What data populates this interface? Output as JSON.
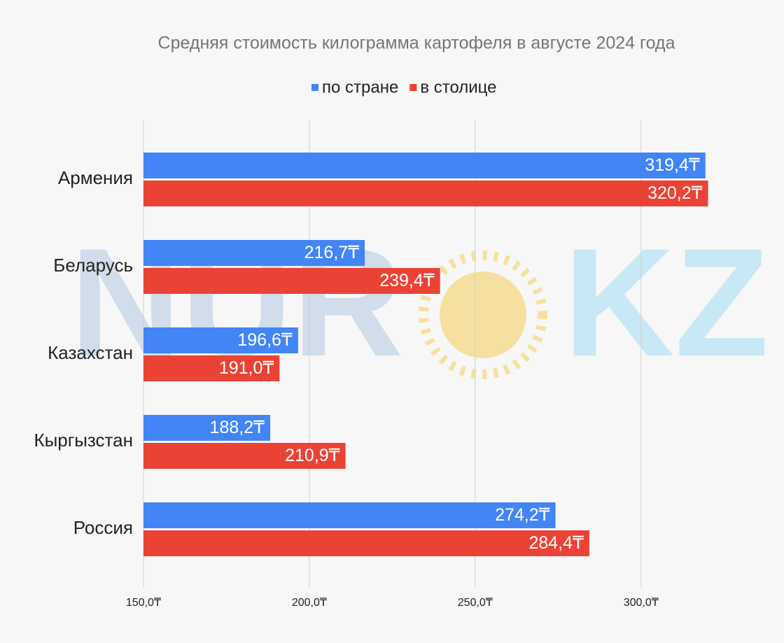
{
  "watermark": {
    "left": "NUR",
    "right": "KZ"
  },
  "chart_data": {
    "type": "hbar",
    "title": "Средняя стоимость килограмма картофеля в августе 2024 года",
    "categories": [
      "Армения",
      "Беларусь",
      "Казахстан",
      "Кыргызстан",
      "Россия"
    ],
    "series": [
      {
        "name": "по стране",
        "color": "#4285f4",
        "values": [
          319.4,
          216.7,
          196.6,
          188.2,
          274.2
        ],
        "value_labels": [
          "319,4₸",
          "216,7₸",
          "196,6₸",
          "188,2₸",
          "274,2₸"
        ]
      },
      {
        "name": "в столице",
        "color": "#ea4335",
        "values": [
          320.2,
          239.4,
          191.0,
          210.9,
          284.4
        ],
        "value_labels": [
          "320,2₸",
          "239,4₸",
          "191,0₸",
          "210,9₸",
          "284,4₸"
        ]
      }
    ],
    "xlim": [
      150,
      330
    ],
    "xticks": [
      {
        "value": 150,
        "label": "150,0₸"
      },
      {
        "value": 200,
        "label": "200,0₸"
      },
      {
        "value": 250,
        "label": "250,0₸"
      },
      {
        "value": 300,
        "label": "300,0₸"
      }
    ],
    "grid": true
  }
}
